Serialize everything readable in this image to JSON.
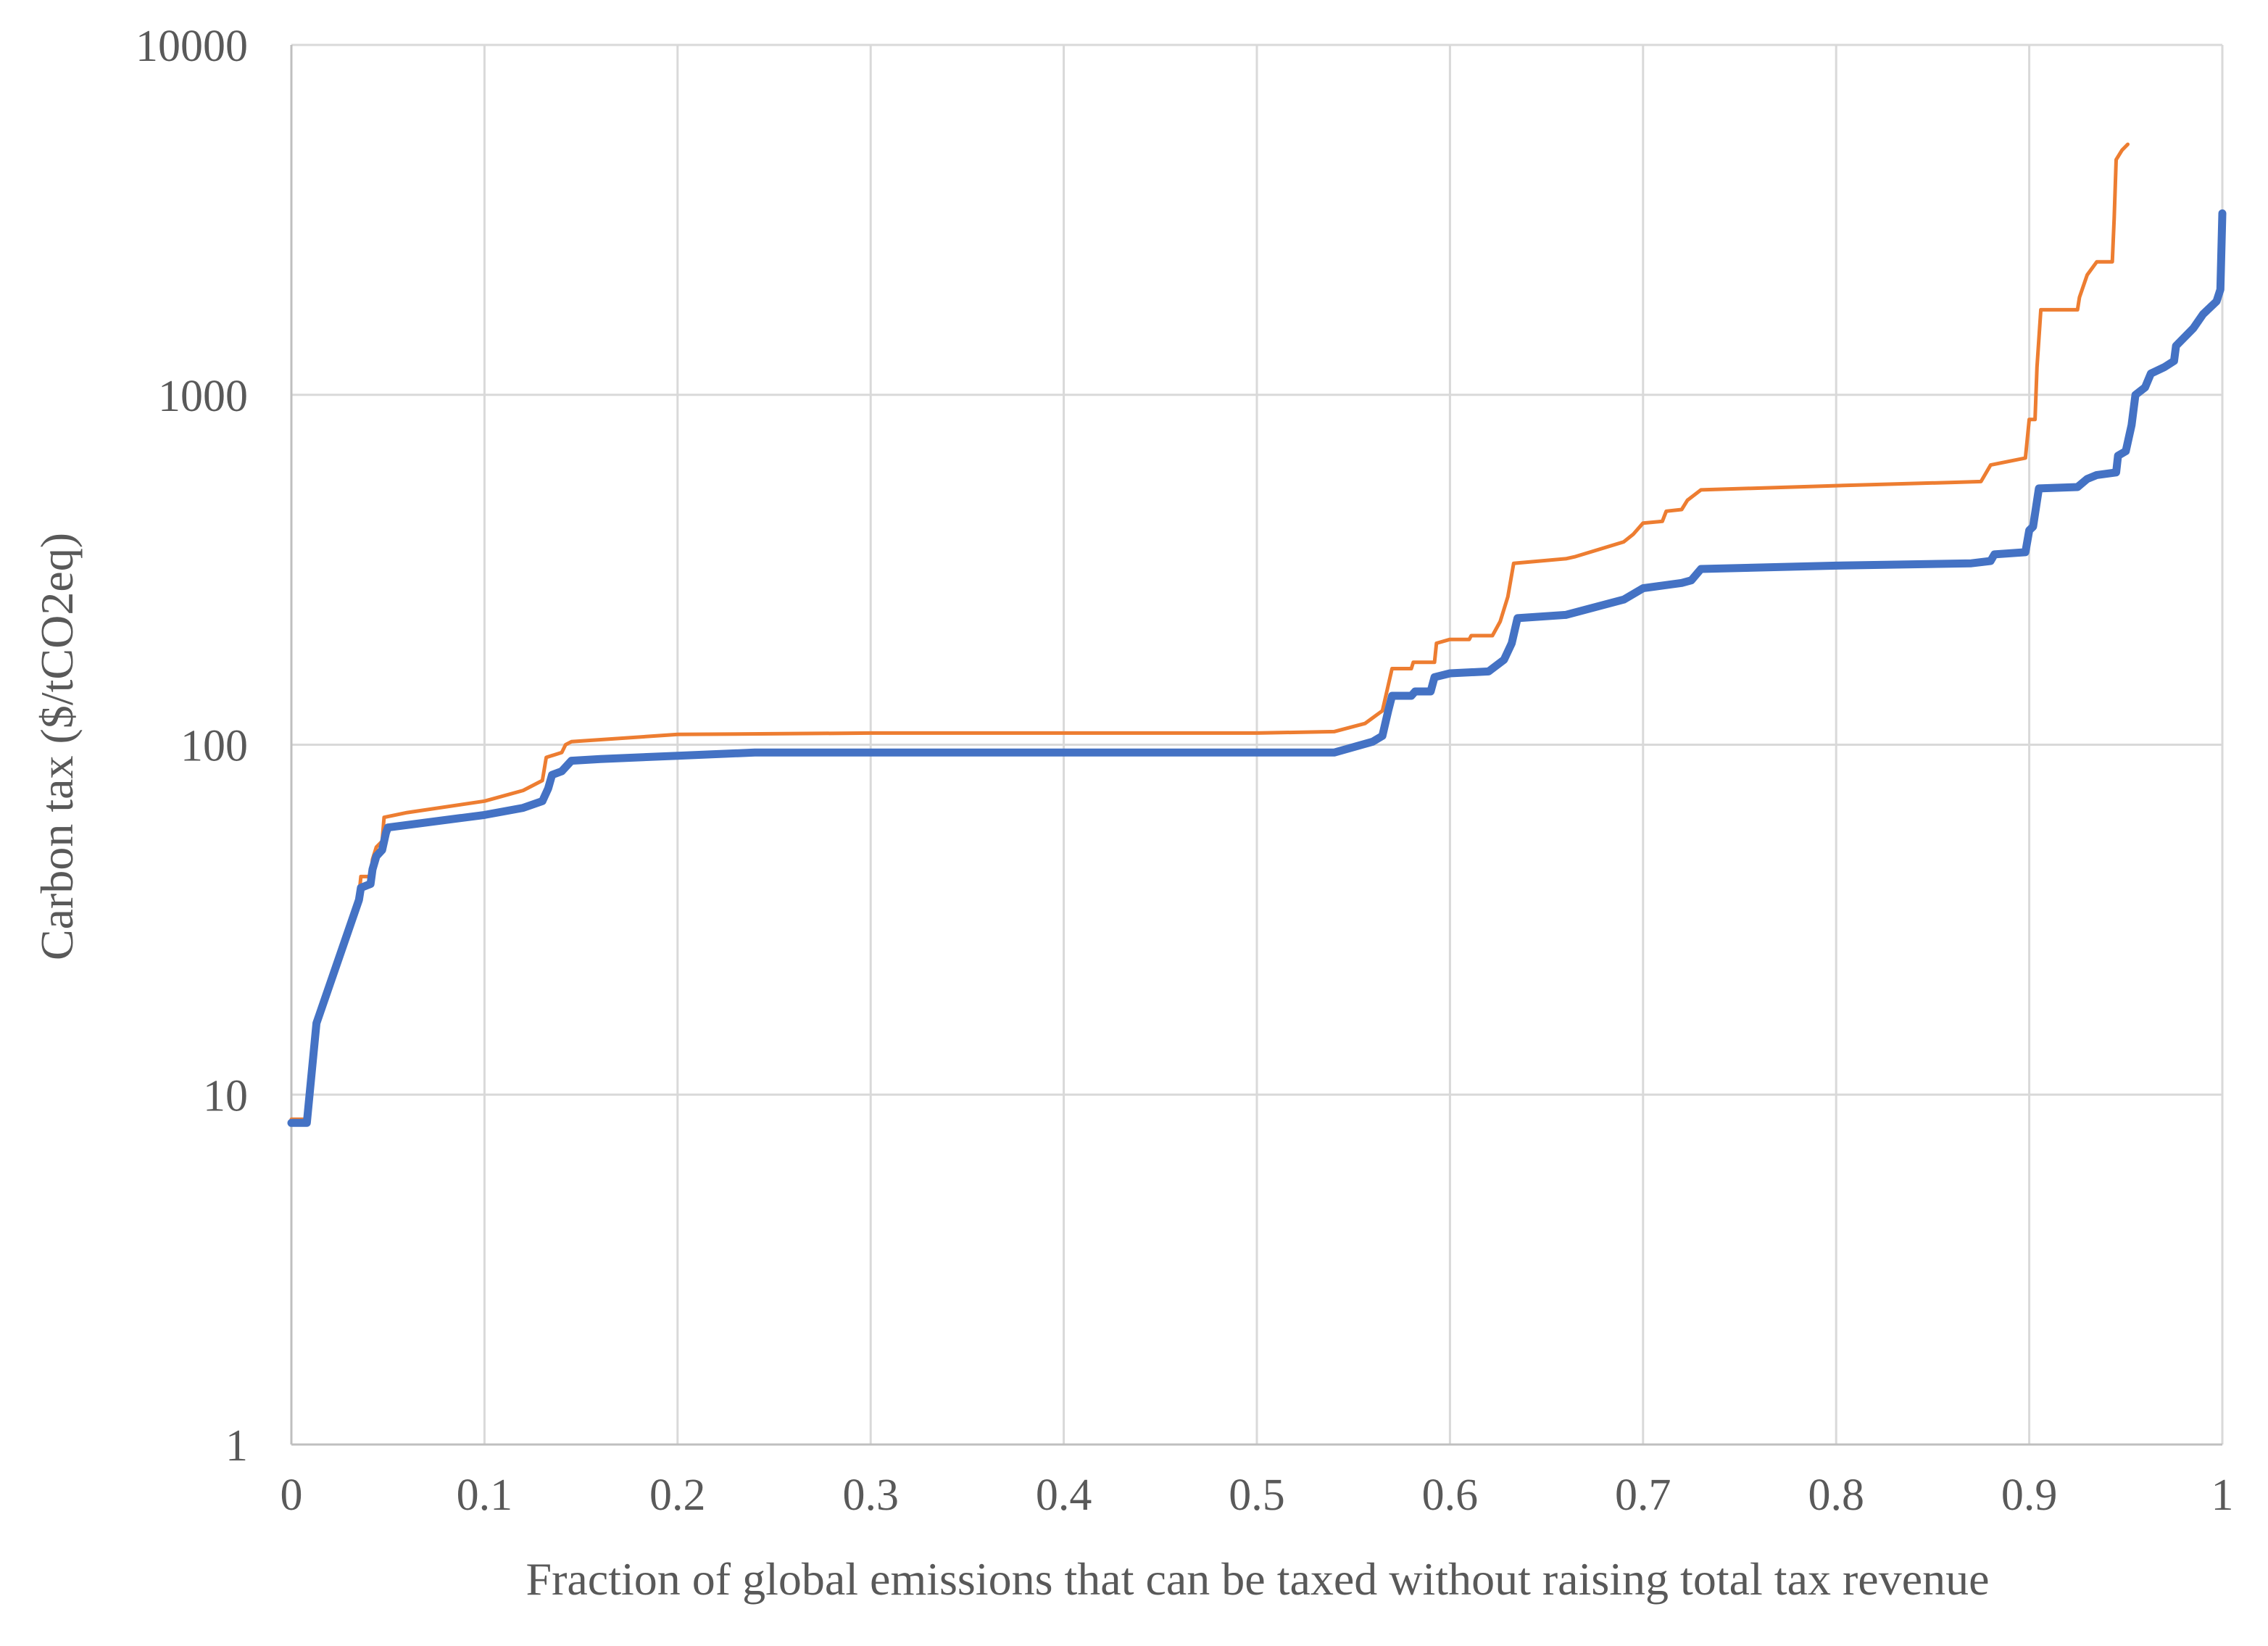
{
  "chart_data": {
    "type": "line",
    "title": "",
    "xlabel": "Fraction of global emissions that can be taxed without raising total tax revenue",
    "ylabel": "Carbon tax ($/tCO2eq)",
    "xlim": [
      0,
      1
    ],
    "ylim": [
      1,
      10000
    ],
    "yscale": "log",
    "grid": true,
    "legend": "none",
    "x_ticks": [
      "0",
      "0.1",
      "0.2",
      "0.3",
      "0.4",
      "0.5",
      "0.6",
      "0.7",
      "0.8",
      "0.9",
      "1"
    ],
    "y_ticks": [
      "1",
      "10",
      "100",
      "1000",
      "10000"
    ],
    "series": [
      {
        "color": "#ed7d31",
        "line_width": "thin",
        "points": [
          [
            0,
            8.5
          ],
          [
            0.008,
            8.5
          ],
          [
            0.013,
            16
          ],
          [
            0.035,
            37
          ],
          [
            0.036,
            42
          ],
          [
            0.041,
            42
          ],
          [
            0.042,
            47
          ],
          [
            0.044,
            51
          ],
          [
            0.047,
            53
          ],
          [
            0.048,
            62
          ],
          [
            0.06,
            64
          ],
          [
            0.1,
            69
          ],
          [
            0.12,
            74
          ],
          [
            0.13,
            79
          ],
          [
            0.132,
            92
          ],
          [
            0.14,
            95
          ],
          [
            0.142,
            100
          ],
          [
            0.145,
            102
          ],
          [
            0.2,
            107
          ],
          [
            0.3,
            108
          ],
          [
            0.5,
            108
          ],
          [
            0.54,
            109
          ],
          [
            0.556,
            115
          ],
          [
            0.565,
            125
          ],
          [
            0.57,
            165
          ],
          [
            0.58,
            165
          ],
          [
            0.581,
            172
          ],
          [
            0.592,
            172
          ],
          [
            0.593,
            195
          ],
          [
            0.6,
            200
          ],
          [
            0.61,
            200
          ],
          [
            0.611,
            205
          ],
          [
            0.622,
            205
          ],
          [
            0.626,
            225
          ],
          [
            0.63,
            265
          ],
          [
            0.633,
            330
          ],
          [
            0.66,
            340
          ],
          [
            0.665,
            345
          ],
          [
            0.69,
            380
          ],
          [
            0.695,
            400
          ],
          [
            0.7,
            430
          ],
          [
            0.71,
            435
          ],
          [
            0.712,
            465
          ],
          [
            0.72,
            470
          ],
          [
            0.723,
            500
          ],
          [
            0.73,
            535
          ],
          [
            0.8,
            550
          ],
          [
            0.86,
            562
          ],
          [
            0.875,
            565
          ],
          [
            0.877,
            590
          ],
          [
            0.88,
            630
          ],
          [
            0.898,
            660
          ],
          [
            0.9,
            850
          ],
          [
            0.903,
            850
          ],
          [
            0.904,
            1200
          ],
          [
            0.906,
            1750
          ],
          [
            0.925,
            1750
          ],
          [
            0.926,
            1900
          ],
          [
            0.93,
            2200
          ],
          [
            0.935,
            2400
          ],
          [
            0.943,
            2400
          ],
          [
            0.944,
            3200
          ],
          [
            0.945,
            4700
          ],
          [
            0.948,
            5000
          ],
          [
            0.951,
            5200
          ]
        ]
      },
      {
        "color": "#4472c4",
        "line_width": "thick",
        "points": [
          [
            0,
            8.3
          ],
          [
            0.008,
            8.3
          ],
          [
            0.013,
            16
          ],
          [
            0.035,
            36
          ],
          [
            0.036,
            39
          ],
          [
            0.041,
            40
          ],
          [
            0.042,
            44
          ],
          [
            0.044,
            48
          ],
          [
            0.047,
            50
          ],
          [
            0.049,
            56
          ],
          [
            0.05,
            58
          ],
          [
            0.1,
            63
          ],
          [
            0.12,
            66
          ],
          [
            0.13,
            69
          ],
          [
            0.133,
            75
          ],
          [
            0.135,
            82
          ],
          [
            0.14,
            84
          ],
          [
            0.145,
            90
          ],
          [
            0.16,
            91
          ],
          [
            0.2,
            93
          ],
          [
            0.24,
            95
          ],
          [
            0.3,
            95
          ],
          [
            0.5,
            95
          ],
          [
            0.54,
            95
          ],
          [
            0.56,
            102
          ],
          [
            0.565,
            106
          ],
          [
            0.568,
            125
          ],
          [
            0.57,
            138
          ],
          [
            0.58,
            138
          ],
          [
            0.582,
            142
          ],
          [
            0.59,
            142
          ],
          [
            0.592,
            156
          ],
          [
            0.6,
            160
          ],
          [
            0.62,
            162
          ],
          [
            0.628,
            175
          ],
          [
            0.632,
            195
          ],
          [
            0.635,
            230
          ],
          [
            0.66,
            235
          ],
          [
            0.69,
            260
          ],
          [
            0.7,
            280
          ],
          [
            0.71,
            285
          ],
          [
            0.72,
            290
          ],
          [
            0.725,
            295
          ],
          [
            0.73,
            318
          ],
          [
            0.8,
            325
          ],
          [
            0.87,
            330
          ],
          [
            0.88,
            335
          ],
          [
            0.882,
            350
          ],
          [
            0.898,
            355
          ],
          [
            0.9,
            410
          ],
          [
            0.902,
            420
          ],
          [
            0.905,
            540
          ],
          [
            0.925,
            545
          ],
          [
            0.93,
            575
          ],
          [
            0.935,
            590
          ],
          [
            0.945,
            600
          ],
          [
            0.946,
            670
          ],
          [
            0.95,
            690
          ],
          [
            0.953,
            820
          ],
          [
            0.955,
            1000
          ],
          [
            0.96,
            1050
          ],
          [
            0.963,
            1150
          ],
          [
            0.97,
            1200
          ],
          [
            0.975,
            1250
          ],
          [
            0.976,
            1380
          ],
          [
            0.985,
            1550
          ],
          [
            0.99,
            1700
          ],
          [
            0.997,
            1850
          ],
          [
            0.999,
            2000
          ],
          [
            1.0,
            3300
          ]
        ]
      }
    ]
  }
}
